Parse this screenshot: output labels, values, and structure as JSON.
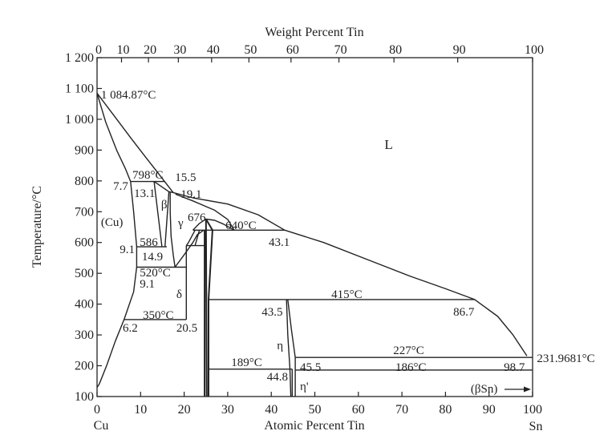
{
  "chart_data": {
    "type": "phase-diagram",
    "title": "",
    "xlabel": "Atomic Percent Tin",
    "x2label": "Weight Percent Tin",
    "ylabel": "Temperature/°C",
    "xlim": [
      0,
      100
    ],
    "ylim": [
      100,
      1200
    ],
    "grid": false,
    "y_ticks": [
      {
        "v": 1200,
        "label": "1 200"
      },
      {
        "v": 1100,
        "label": "1 100"
      },
      {
        "v": 1000,
        "label": "1 000"
      },
      {
        "v": 900,
        "label": "900"
      },
      {
        "v": 800,
        "label": "800"
      },
      {
        "v": 700,
        "label": "700"
      },
      {
        "v": 600,
        "label": "600"
      },
      {
        "v": 500,
        "label": "500"
      },
      {
        "v": 400,
        "label": "400"
      },
      {
        "v": 300,
        "label": "300"
      },
      {
        "v": 200,
        "label": "200"
      },
      {
        "v": 100,
        "label": "100"
      }
    ],
    "x_ticks": [
      "0",
      "10",
      "20",
      "30",
      "40",
      "50",
      "60",
      "70",
      "80",
      "90",
      "100"
    ],
    "x2_ticks": [
      "0",
      "10",
      "20",
      "30",
      "40",
      "50",
      "60",
      "70",
      "80",
      "90",
      "100"
    ],
    "left_element": "Cu",
    "right_element": "Sn",
    "boundaries": [
      {
        "name": "liquidus-cu",
        "points": [
          [
            0,
            1084.87
          ],
          [
            4,
            1010
          ],
          [
            8,
            935
          ],
          [
            11,
            880
          ],
          [
            13.5,
            835
          ],
          [
            15.5,
            798
          ],
          [
            17.5,
            762
          ]
        ]
      },
      {
        "name": "solidus-cu",
        "points": [
          [
            0,
            1084.87
          ],
          [
            2,
            990
          ],
          [
            4.5,
            900
          ],
          [
            6.5,
            840
          ],
          [
            7.7,
            798
          ]
        ]
      },
      {
        "name": "cu-solvus",
        "points": [
          [
            7.7,
            798
          ],
          [
            8.4,
            700
          ],
          [
            9.1,
            586
          ],
          [
            9.1,
            520
          ],
          [
            8.4,
            440
          ],
          [
            6.2,
            350
          ],
          [
            4.2,
            280
          ],
          [
            2.2,
            200
          ],
          [
            0.5,
            140
          ],
          [
            0,
            130
          ]
        ]
      },
      {
        "name": "peritectic-798",
        "points": [
          [
            7.7,
            798
          ],
          [
            15.5,
            798
          ]
        ]
      },
      {
        "name": "beta-left",
        "points": [
          [
            13.1,
            798
          ],
          [
            14.9,
            586
          ]
        ]
      },
      {
        "name": "beta-top",
        "points": [
          [
            13.1,
            798
          ],
          [
            16.5,
            765
          ],
          [
            17.5,
            762
          ]
        ]
      },
      {
        "name": "beta-right",
        "points": [
          [
            16.5,
            765
          ],
          [
            15.6,
            586
          ]
        ]
      },
      {
        "name": "eutectoid-586",
        "points": [
          [
            9.1,
            586
          ],
          [
            16,
            586
          ]
        ]
      },
      {
        "name": "gamma-left",
        "points": [
          [
            16.8,
            762
          ],
          [
            16.8,
            700
          ],
          [
            17.0,
            620
          ],
          [
            17.5,
            560
          ],
          [
            17.9,
            520
          ]
        ]
      },
      {
        "name": "gamma-upper-liquidus",
        "points": [
          [
            17.5,
            762
          ],
          [
            22,
            745
          ],
          [
            30,
            725
          ],
          [
            37,
            690
          ],
          [
            43.1,
            640
          ]
        ]
      },
      {
        "name": "gamma-solidus",
        "points": [
          [
            18,
            757
          ],
          [
            22,
            735
          ],
          [
            27,
            705
          ],
          [
            30,
            675
          ],
          [
            31.5,
            640
          ]
        ]
      },
      {
        "name": "gamma-lower-right",
        "points": [
          [
            17.9,
            520
          ],
          [
            20,
            560
          ],
          [
            22,
            600
          ],
          [
            23,
            625
          ],
          [
            24.5,
            640
          ]
        ]
      },
      {
        "name": "gamma-dome",
        "points": [
          [
            22,
            640
          ],
          [
            23.5,
            662
          ],
          [
            25,
            676
          ],
          [
            27,
            672
          ],
          [
            29,
            660
          ],
          [
            31.5,
            640
          ]
        ]
      },
      {
        "name": "dome-inner-left",
        "points": [
          [
            23.5,
            640
          ],
          [
            22.5,
            590
          ]
        ]
      },
      {
        "name": "dome-inner-left2",
        "points": [
          [
            22.5,
            640
          ],
          [
            21,
            600
          ],
          [
            20.5,
            590
          ]
        ]
      },
      {
        "name": "eutectoid-520",
        "points": [
          [
            9.1,
            520
          ],
          [
            20.5,
            520
          ]
        ]
      },
      {
        "name": "peritectic-640",
        "points": [
          [
            22,
            640
          ],
          [
            43.1,
            640
          ]
        ]
      },
      {
        "name": "liquidus-sn",
        "points": [
          [
            43.1,
            640
          ],
          [
            52,
            600
          ],
          [
            62,
            545
          ],
          [
            72,
            490
          ],
          [
            80,
            450
          ],
          [
            86.7,
            415
          ],
          [
            92,
            360
          ],
          [
            95.5,
            300
          ],
          [
            98.7,
            232
          ]
        ]
      },
      {
        "name": "delta-left",
        "points": [
          [
            20.5,
            350
          ],
          [
            20.5,
            590
          ]
        ]
      },
      {
        "name": "delta-top",
        "points": [
          [
            20.5,
            590
          ],
          [
            24.7,
            590
          ]
        ]
      },
      {
        "name": "delta-right",
        "points": [
          [
            24.7,
            640
          ],
          [
            24.7,
            100
          ]
        ]
      },
      {
        "name": "epsilon-left",
        "points": [
          [
            25,
            676
          ],
          [
            25.2,
            100
          ]
        ]
      },
      {
        "name": "epsilon-right",
        "points": [
          [
            25,
            676
          ],
          [
            26.5,
            640
          ],
          [
            25.6,
            415
          ],
          [
            25.6,
            100
          ]
        ]
      },
      {
        "name": "eutectoid-350",
        "points": [
          [
            6.2,
            350
          ],
          [
            20.5,
            350
          ]
        ]
      },
      {
        "name": "peritectic-415",
        "points": [
          [
            25.6,
            415
          ],
          [
            86.7,
            415
          ]
        ]
      },
      {
        "name": "eta-left",
        "points": [
          [
            43.5,
            415
          ],
          [
            43.8,
            300
          ],
          [
            44.3,
            189
          ],
          [
            44.5,
            100
          ]
        ]
      },
      {
        "name": "eta-right",
        "points": [
          [
            43.8,
            415
          ],
          [
            44.6,
            320
          ],
          [
            45.5,
            227
          ],
          [
            45.5,
            186
          ]
        ]
      },
      {
        "name": "eta-prime-left",
        "points": [
          [
            44.8,
            189
          ],
          [
            44.8,
            100
          ]
        ]
      },
      {
        "name": "eta-prime-right",
        "points": [
          [
            45.5,
            186
          ],
          [
            45.5,
            100
          ]
        ]
      },
      {
        "name": "line-189",
        "points": [
          [
            25.6,
            189
          ],
          [
            44.8,
            189
          ]
        ]
      },
      {
        "name": "eutectic-227",
        "points": [
          [
            45.5,
            227
          ],
          [
            100,
            227
          ]
        ]
      },
      {
        "name": "line-186",
        "points": [
          [
            45.5,
            186
          ],
          [
            100,
            186
          ]
        ]
      }
    ],
    "annotations": [
      {
        "text": "1 084.87°C",
        "x": 0.9,
        "t": 1067
      },
      {
        "text": "L",
        "x": 66,
        "t": 904
      },
      {
        "text": "798°C",
        "x": 8.1,
        "t": 807
      },
      {
        "text": "15.5",
        "x": 17.9,
        "t": 800
      },
      {
        "text": "7.7",
        "x": 3.7,
        "t": 771
      },
      {
        "text": "13.1",
        "x": 8.5,
        "t": 755
      },
      {
        "text": "19.1",
        "x": 19.2,
        "t": 755
      },
      {
        "text": "β",
        "x": 14.7,
        "t": 711
      },
      {
        "text": "γ",
        "x": 18.6,
        "t": 651
      },
      {
        "text": "676",
        "x": 20.8,
        "t": 670
      },
      {
        "text": "640°C",
        "x": 29.5,
        "t": 644
      },
      {
        "text": "(Cu)",
        "x": 0.9,
        "t": 654
      },
      {
        "text": "43.1",
        "x": 39.4,
        "t": 589
      },
      {
        "text": "586",
        "x": 9.8,
        "t": 589
      },
      {
        "text": "9.1",
        "x": 5.2,
        "t": 566
      },
      {
        "text": "14.9",
        "x": 10.3,
        "t": 542
      },
      {
        "text": "520°C",
        "x": 9.8,
        "t": 513
      },
      {
        "text": "9.1",
        "x": 9.8,
        "t": 472
      },
      {
        "text": "δ",
        "x": 18.2,
        "t": 420
      },
      {
        "text": "415°C",
        "x": 53.8,
        "t": 420
      },
      {
        "text": "43.5",
        "x": 37.8,
        "t": 363
      },
      {
        "text": "86.7",
        "x": 81.8,
        "t": 363
      },
      {
        "text": "350°C",
        "x": 10.5,
        "t": 352
      },
      {
        "text": "6.2",
        "x": 5.9,
        "t": 311
      },
      {
        "text": "20.5",
        "x": 18.2,
        "t": 311
      },
      {
        "text": "η",
        "x": 41.3,
        "t": 253
      },
      {
        "text": "227°C",
        "x": 68,
        "t": 238
      },
      {
        "text": "189°C",
        "x": 30.8,
        "t": 199
      },
      {
        "text": "45.5",
        "x": 46.6,
        "t": 183
      },
      {
        "text": "186°C",
        "x": 68.5,
        "t": 183
      },
      {
        "text": "98.7",
        "x": 93.4,
        "t": 183
      },
      {
        "text": "231.9681°C",
        "x": 101,
        "t": 212
      },
      {
        "text": "44.8",
        "x": 39,
        "t": 152
      },
      {
        "text": "η'",
        "x": 46.6,
        "t": 121
      },
      {
        "text": "(βSn)",
        "x": 85.8,
        "t": 113
      }
    ]
  }
}
